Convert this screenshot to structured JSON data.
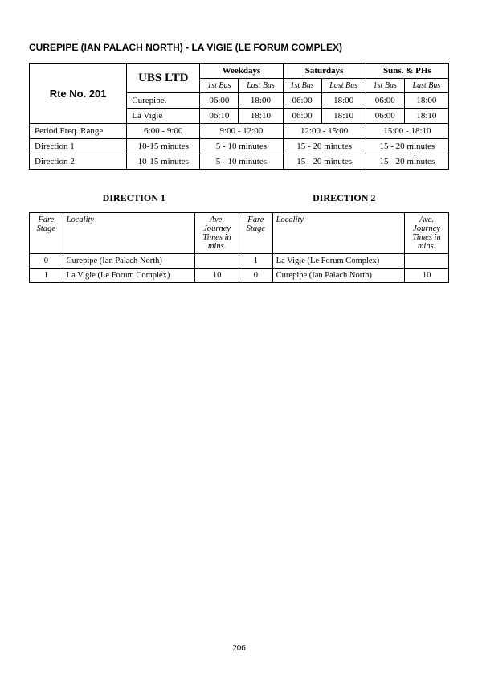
{
  "title": "CUREPIPE (IAN PALACH NORTH) - LA VIGIE (LE FORUM COMPLEX)",
  "route_label": "Rte No. 201",
  "operator": "UBS LTD",
  "day_headers": [
    "Weekdays",
    "Saturdays",
    "Suns. & PHs"
  ],
  "sub_headers": [
    "1st Bus",
    "Last Bus"
  ],
  "stops": [
    {
      "name": "Curepipe.",
      "wk": [
        "06:00",
        "18:00"
      ],
      "sat": [
        "06:00",
        "18:00"
      ],
      "sun": [
        "06:00",
        "18:00"
      ]
    },
    {
      "name": "La Vigie",
      "wk": [
        "06:10",
        "18:10"
      ],
      "sat": [
        "06:00",
        "18:10"
      ],
      "sun": [
        "06:00",
        "18:10"
      ]
    }
  ],
  "freq": {
    "label": "Period Freq. Range",
    "base": "6:00 - 9:00",
    "wk": "9:00 - 12:00",
    "sat": "12:00 - 15:00",
    "sun": "15:00 - 18:10"
  },
  "dir1": {
    "label": "Direction 1",
    "base": "10-15 minutes",
    "wk": "5 - 10 minutes",
    "sat": "15 - 20 minutes",
    "sun": "15 - 20 minutes"
  },
  "dir2": {
    "label": "Direction 2",
    "base": "10-15 minutes",
    "wk": "5 - 10 minutes",
    "sat": "15 - 20 minutes",
    "sun": "15 - 20 minutes"
  },
  "dir_title_1": "DIRECTION  1",
  "dir_title_2": "DIRECTION  2",
  "fare_headers": {
    "stage": "Fare Stage",
    "locality": "Locality",
    "time": "Ave. Journey Times in mins."
  },
  "fares_d1": [
    {
      "stage": "0",
      "loc": "Curepipe (Ian Palach North)",
      "time": ""
    },
    {
      "stage": "1",
      "loc": "La Vigie (Le Forum Complex)",
      "time": "10"
    }
  ],
  "fares_d2": [
    {
      "stage": "1",
      "loc": "La Vigie (Le Forum Complex)",
      "time": ""
    },
    {
      "stage": "0",
      "loc": "Curepipe (Ian Palach North)",
      "time": "10"
    }
  ],
  "page_number": "206"
}
